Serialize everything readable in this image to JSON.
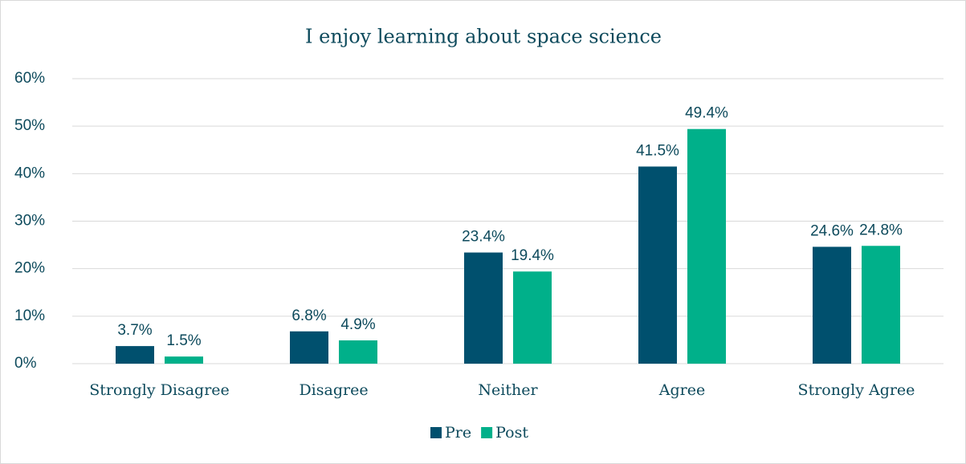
{
  "chart_data": {
    "type": "bar",
    "title": "I enjoy learning about space science",
    "categories": [
      "Strongly Disagree",
      "Disagree",
      "Neither",
      "Agree",
      "Strongly Agree"
    ],
    "series": [
      {
        "name": "Pre",
        "color": "#00506e",
        "values": [
          3.7,
          6.8,
          23.4,
          41.5,
          24.6
        ],
        "value_labels": [
          "3.7%",
          "6.8%",
          "23.4%",
          "41.5%",
          "24.6%"
        ]
      },
      {
        "name": "Post",
        "color": "#00b08a",
        "values": [
          1.5,
          4.9,
          19.4,
          49.4,
          24.8
        ],
        "value_labels": [
          "1.5%",
          "4.9%",
          "19.4%",
          "49.4%",
          "24.8%"
        ]
      }
    ],
    "ylim": [
      0,
      60
    ],
    "yticks": [
      {
        "value": 0,
        "label": "0%"
      },
      {
        "value": 10,
        "label": "10%"
      },
      {
        "value": 20,
        "label": "20%"
      },
      {
        "value": 30,
        "label": "30%"
      },
      {
        "value": 40,
        "label": "40%"
      },
      {
        "value": 50,
        "label": "50%"
      },
      {
        "value": 60,
        "label": "60%"
      }
    ],
    "grid": true,
    "legend": "bottom"
  }
}
